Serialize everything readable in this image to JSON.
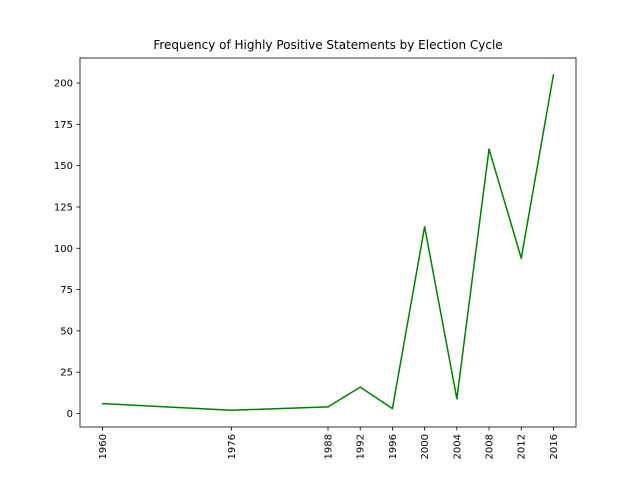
{
  "chart_data": {
    "type": "line",
    "title": "Frequency of Highly Positive Statements by Election Cycle",
    "xlabel": "",
    "ylabel": "",
    "x": [
      1960,
      1976,
      1988,
      1992,
      1996,
      2000,
      2004,
      2008,
      2012,
      2016
    ],
    "series": [
      {
        "values": [
          6,
          2,
          4,
          16,
          3,
          113,
          9,
          160,
          94,
          205
        ],
        "color": "#008000"
      }
    ],
    "x_ticks": [
      "1960",
      "1976",
      "1988",
      "1992",
      "1996",
      "2000",
      "2004",
      "2008",
      "2012",
      "2016"
    ],
    "x_tick_rotation": "vertical",
    "y_ticks": [
      0,
      25,
      50,
      75,
      100,
      125,
      150,
      175,
      200
    ],
    "xlim": [
      1957.2,
      2018.8
    ],
    "ylim": [
      -8.15,
      215.15
    ],
    "grid": false,
    "legend": "none"
  }
}
